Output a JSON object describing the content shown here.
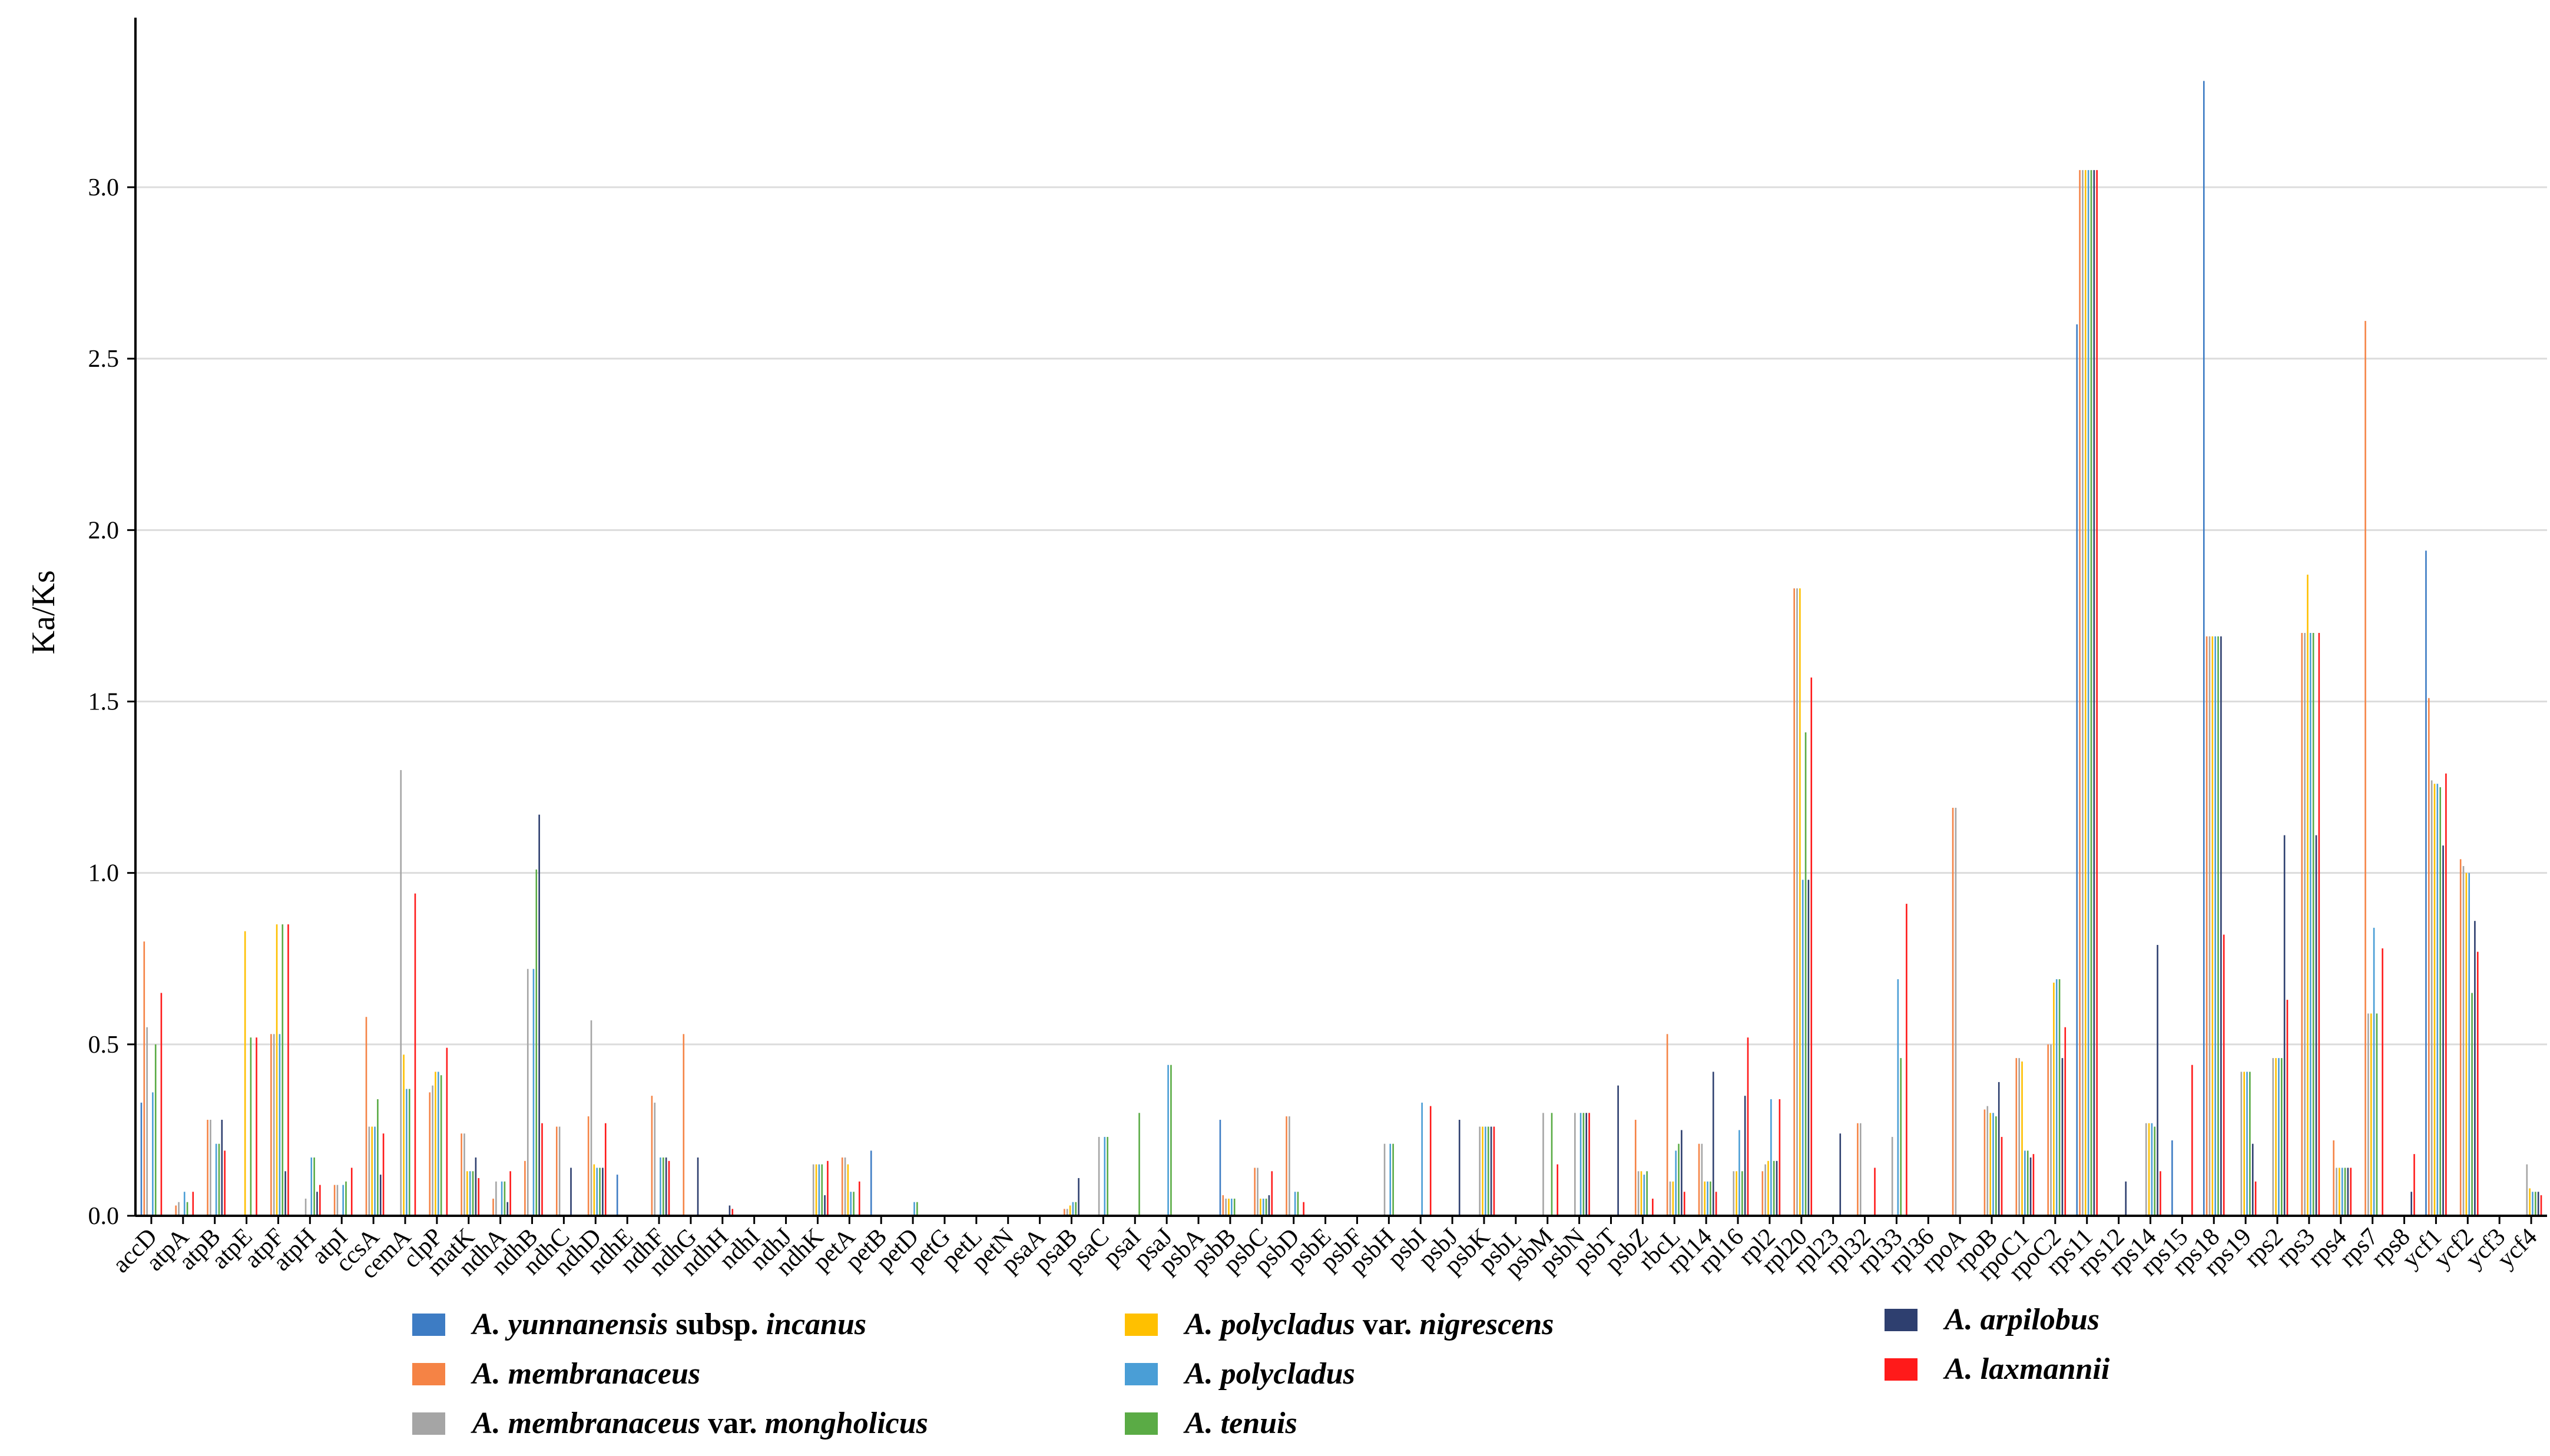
{
  "chart_data": {
    "type": "bar",
    "ylabel": "Ka/Ks",
    "ylim": [
      0,
      3.4
    ],
    "yticks": [
      "0.0",
      "0.5",
      "1.0",
      "1.5",
      "2.0",
      "2.5",
      "3.0"
    ],
    "grid": "horizontal",
    "legend_position": "bottom",
    "categories": [
      "accD",
      "atpA",
      "atpB",
      "atpE",
      "atpF",
      "atpH",
      "atpI",
      "ccsA",
      "cemA",
      "clpP",
      "matK",
      "ndhA",
      "ndhB",
      "ndhC",
      "ndhD",
      "ndhE",
      "ndhF",
      "ndhG",
      "ndhH",
      "ndhI",
      "ndhJ",
      "ndhK",
      "petA",
      "petB",
      "petD",
      "petG",
      "petL",
      "petN",
      "psaA",
      "psaB",
      "psaC",
      "psaI",
      "psaJ",
      "psbA",
      "psbB",
      "psbC",
      "psbD",
      "psbE",
      "psbF",
      "psbH",
      "psbI",
      "psbJ",
      "psbK",
      "psbL",
      "psbM",
      "psbN",
      "psbT",
      "psbZ",
      "rbcL",
      "rpl14",
      "rpl16",
      "rpl2",
      "rpl20",
      "rpl23",
      "rpl32",
      "rpl33",
      "rpl36",
      "rpoA",
      "rpoB",
      "rpoC1",
      "rpoC2",
      "rps11",
      "rps12",
      "rps14",
      "rps15",
      "rps18",
      "rps19",
      "rps2",
      "rps3",
      "rps4",
      "rps7",
      "rps8",
      "ycf1",
      "ycf2",
      "ycf3",
      "ycf4"
    ],
    "series": [
      {
        "name": "A. yunnanensis subsp. incanus",
        "color": "#3d7cc4",
        "values": [
          0.33,
          0,
          0,
          0,
          0,
          0,
          0,
          0,
          0,
          0,
          0,
          0,
          0,
          0,
          0,
          0.12,
          0,
          0,
          0,
          0,
          0,
          0,
          0,
          0.19,
          0,
          0,
          0,
          0,
          0,
          0,
          0,
          0,
          0,
          0,
          0.28,
          0,
          0,
          0,
          0,
          0,
          0,
          0,
          0,
          0,
          0,
          0,
          0,
          0,
          0,
          0,
          0,
          0,
          0,
          0,
          0,
          0,
          0,
          0,
          0,
          0,
          0,
          2.6,
          0,
          0,
          0.22,
          3.31,
          0,
          0,
          0,
          0,
          0,
          0,
          1.94,
          0,
          0,
          0
        ]
      },
      {
        "name": "A. membranaceus",
        "color": "#f58345",
        "values": [
          0.8,
          0.03,
          0.28,
          0,
          0.53,
          0,
          0.09,
          0.58,
          0,
          0.36,
          0.24,
          0.05,
          0.16,
          0.26,
          0.29,
          0,
          0.35,
          0.53,
          0,
          0,
          0,
          0,
          0.17,
          0,
          0,
          0,
          0,
          0,
          0,
          0.02,
          0,
          0,
          0,
          0,
          0.06,
          0.14,
          0.29,
          0,
          0,
          0,
          0,
          0,
          0,
          0,
          0,
          0,
          0,
          0.28,
          0.53,
          0.21,
          0,
          0.13,
          1.83,
          0,
          0.27,
          0,
          0,
          1.19,
          0.31,
          0.46,
          0.5,
          3.05,
          0,
          0,
          0,
          1.69,
          0,
          0,
          1.7,
          0.22,
          2.61,
          0,
          1.51,
          1.04,
          0,
          0
        ]
      },
      {
        "name": "A. membranaceus var. mongholicus",
        "color": "#a5a5a5",
        "values": [
          0.55,
          0.04,
          0.28,
          0,
          0.53,
          0.05,
          0.09,
          0.26,
          1.3,
          0.38,
          0.24,
          0.1,
          0.72,
          0.26,
          0.57,
          0,
          0.33,
          0,
          0,
          0,
          0,
          0.15,
          0.17,
          0,
          0,
          0,
          0,
          0,
          0,
          0.02,
          0.23,
          0,
          0,
          0,
          0.05,
          0.14,
          0.29,
          0,
          0,
          0.21,
          0,
          0,
          0.26,
          0,
          0.3,
          0.3,
          0,
          0.13,
          0.1,
          0.21,
          0.13,
          0.15,
          1.83,
          0,
          0.27,
          0.23,
          0,
          1.19,
          0.32,
          0.46,
          0.5,
          3.05,
          0,
          0.27,
          0,
          1.69,
          0.42,
          0.46,
          1.7,
          0.14,
          0.59,
          0,
          1.27,
          1.02,
          0,
          0.15
        ]
      },
      {
        "name": "A. polycladus var. nigrescens",
        "color": "#ffc000",
        "values": [
          0,
          0,
          0,
          0.83,
          0.85,
          0,
          0,
          0.26,
          0.47,
          0.42,
          0.13,
          0,
          0,
          0,
          0.15,
          0,
          0,
          0,
          0,
          0,
          0,
          0.15,
          0.15,
          0,
          0,
          0,
          0,
          0,
          0,
          0.03,
          0,
          0,
          0,
          0,
          0.05,
          0.05,
          0,
          0,
          0,
          0,
          0,
          0,
          0.26,
          0,
          0,
          0,
          0,
          0.13,
          0.1,
          0.1,
          0.13,
          0.16,
          1.83,
          0,
          0,
          0,
          0,
          0,
          0.3,
          0.45,
          0.68,
          3.05,
          0,
          0.27,
          0,
          1.69,
          0.42,
          0.46,
          1.87,
          0.14,
          0.59,
          0,
          1.26,
          1.0,
          0,
          0.08
        ]
      },
      {
        "name": "A. polycladus",
        "color": "#4a9ed6",
        "values": [
          0.36,
          0.07,
          0.21,
          0,
          0.53,
          0.17,
          0.09,
          0.26,
          0.37,
          0.42,
          0.13,
          0.1,
          0.72,
          0,
          0.14,
          0,
          0.17,
          0,
          0,
          0,
          0,
          0.15,
          0.07,
          0,
          0.04,
          0,
          0,
          0,
          0,
          0.04,
          0.23,
          0,
          0.44,
          0,
          0.05,
          0.05,
          0.07,
          0,
          0,
          0.21,
          0.33,
          0,
          0.26,
          0,
          0,
          0.3,
          0,
          0.12,
          0.19,
          0.1,
          0.25,
          0.34,
          0.98,
          0,
          0,
          0.69,
          0,
          0,
          0.3,
          0.19,
          0.69,
          3.05,
          0,
          0.27,
          0,
          1.69,
          0.42,
          0.46,
          1.7,
          0.14,
          0.84,
          0,
          1.26,
          1.0,
          0,
          0.07
        ]
      },
      {
        "name": "A. tenuis",
        "color": "#5aab45",
        "values": [
          0.5,
          0.04,
          0.21,
          0.52,
          0.85,
          0.17,
          0.1,
          0.34,
          0.37,
          0.41,
          0.13,
          0.1,
          1.01,
          0,
          0.14,
          0,
          0.17,
          0,
          0,
          0,
          0,
          0.15,
          0.07,
          0,
          0.04,
          0,
          0,
          0,
          0,
          0.04,
          0.23,
          0.3,
          0.44,
          0,
          0.05,
          0.05,
          0.07,
          0,
          0,
          0.21,
          0,
          0,
          0.26,
          0,
          0.3,
          0.3,
          0,
          0.13,
          0.21,
          0.1,
          0.13,
          0.16,
          1.41,
          0,
          0,
          0.46,
          0,
          0,
          0.29,
          0.19,
          0.69,
          3.05,
          0,
          0.26,
          0,
          1.69,
          0.42,
          0.46,
          1.7,
          0.14,
          0.59,
          0,
          1.25,
          0.65,
          0,
          0.07
        ]
      },
      {
        "name": "A. arpilobus",
        "color": "#2e3f6f",
        "values": [
          0,
          0,
          0.28,
          0,
          0.13,
          0.07,
          0,
          0.12,
          0,
          0,
          0.17,
          0.04,
          1.17,
          0.14,
          0.14,
          0,
          0.17,
          0.17,
          0.03,
          0,
          0,
          0.06,
          0,
          0,
          0,
          0,
          0,
          0,
          0,
          0.11,
          0,
          0,
          0,
          0,
          0,
          0.06,
          0,
          0,
          0,
          0,
          0,
          0.28,
          0.26,
          0,
          0,
          0.3,
          0.38,
          0,
          0.25,
          0.42,
          0.35,
          0.16,
          0.98,
          0.24,
          0,
          0,
          0,
          0,
          0.39,
          0.17,
          0.46,
          3.05,
          0.1,
          0.79,
          0,
          1.69,
          0.21,
          1.11,
          1.11,
          0.14,
          0,
          0.07,
          1.08,
          0.86,
          0,
          0.07
        ]
      },
      {
        "name": "A. laxmannii",
        "color": "#ff1a1a",
        "values": [
          0.65,
          0.07,
          0.19,
          0.52,
          0.85,
          0.09,
          0.14,
          0.24,
          0.94,
          0.49,
          0.11,
          0.13,
          0.27,
          0,
          0.27,
          0,
          0.16,
          0,
          0.02,
          0,
          0,
          0.16,
          0.1,
          0,
          0,
          0,
          0,
          0,
          0,
          0,
          0,
          0,
          0,
          0,
          0,
          0.13,
          0.04,
          0,
          0,
          0,
          0.32,
          0,
          0.26,
          0,
          0.15,
          0.3,
          0,
          0.05,
          0.07,
          0.07,
          0.52,
          0.34,
          1.57,
          0,
          0.14,
          0.91,
          0,
          0,
          0.23,
          0.18,
          0.55,
          3.05,
          0,
          0.13,
          0.44,
          0.82,
          0.1,
          0.63,
          1.7,
          0.14,
          0.78,
          0.18,
          1.29,
          0.77,
          0,
          0.06
        ]
      }
    ]
  },
  "legend": {
    "items": [
      {
        "prefix": "A. yunnanensis",
        "middle": " subsp. ",
        "suffix": "incanus"
      },
      {
        "prefix": "A. membranaceus",
        "middle": "",
        "suffix": ""
      },
      {
        "prefix": "A. membranaceus",
        "middle": " var. ",
        "suffix": "mongholicus"
      },
      {
        "prefix": "A. polycladus",
        "middle": " var. ",
        "suffix": "nigrescens"
      },
      {
        "prefix": "A. polycladus",
        "middle": "",
        "suffix": ""
      },
      {
        "prefix": "A. tenuis",
        "middle": "",
        "suffix": ""
      },
      {
        "prefix": "A. arpilobus",
        "middle": "",
        "suffix": ""
      },
      {
        "prefix": "A. laxmannii",
        "middle": "",
        "suffix": ""
      }
    ]
  }
}
